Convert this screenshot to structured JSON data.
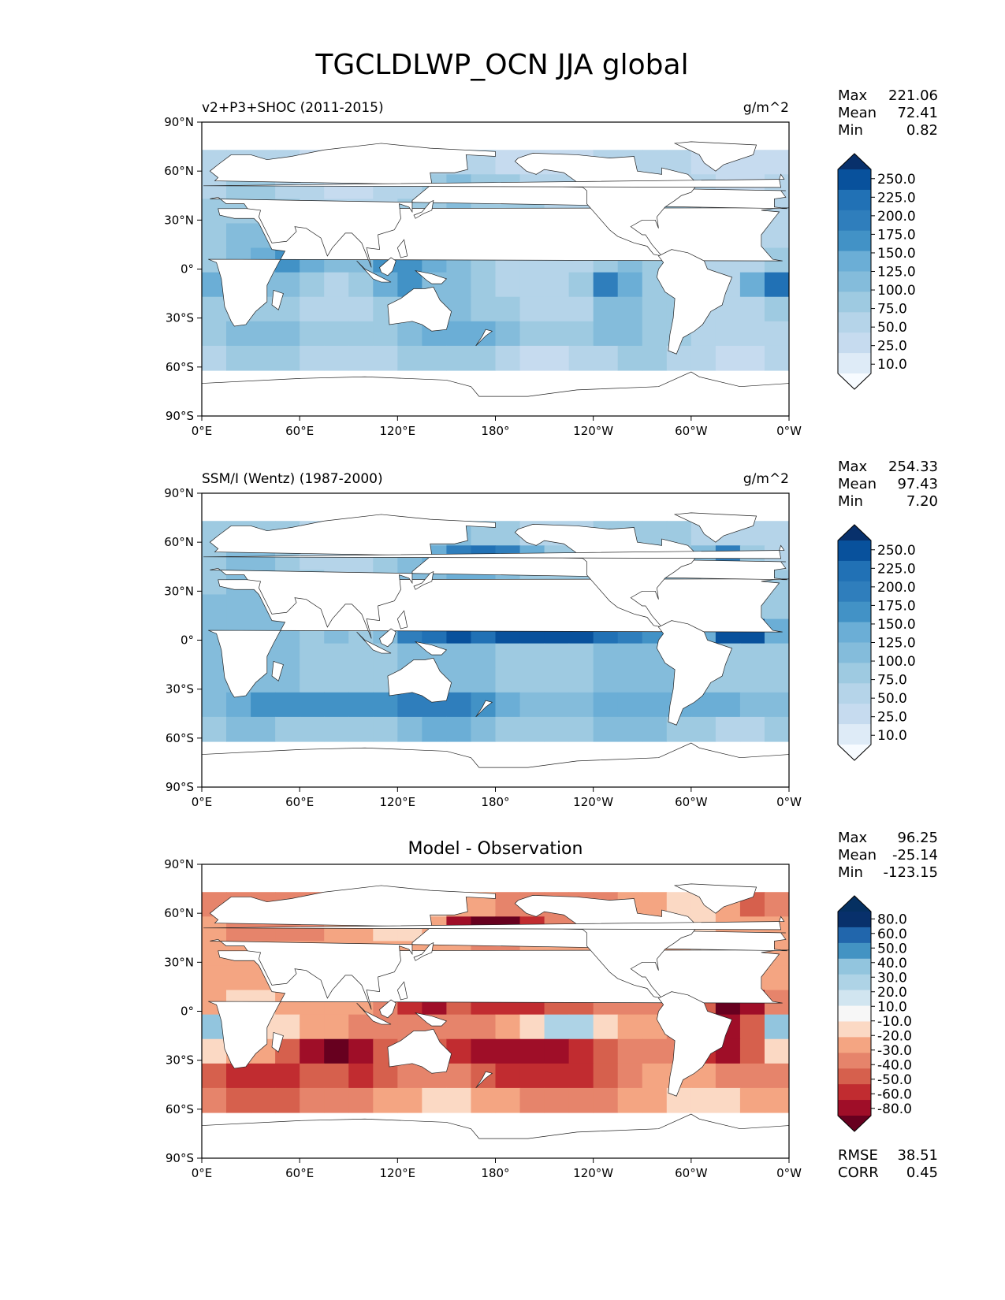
{
  "figure_title": "TGCLDLWP_OCN JJA global",
  "chart_data": [
    {
      "type": "heatmap",
      "title_left": "v2+P3+SHOC (2011-2015)",
      "units": "g/m^2",
      "stats": [
        {
          "label": "Max",
          "value": "221.06"
        },
        {
          "label": "Mean",
          "value": "72.41"
        },
        {
          "label": "Min",
          "value": "0.82"
        }
      ],
      "colorbar": {
        "palette": "blues",
        "levels": [
          "250.0",
          "225.0",
          "200.0",
          "175.0",
          "150.0",
          "125.0",
          "100.0",
          "75.0",
          "50.0",
          "25.0",
          "10.0"
        ]
      },
      "x_ticks": [
        "0°E",
        "60°E",
        "120°E",
        "180°",
        "120°W",
        "60°W",
        "0°W"
      ],
      "y_ticks": [
        "90°N",
        "60°N",
        "30°N",
        "0°",
        "30°S",
        "60°S",
        "90°S"
      ],
      "xlim": [
        0,
        360
      ],
      "ylim": [
        -90,
        90
      ]
    },
    {
      "type": "heatmap",
      "title_left": "SSM/I (Wentz) (1987-2000)",
      "units": "g/m^2",
      "stats": [
        {
          "label": "Max",
          "value": "254.33"
        },
        {
          "label": "Mean",
          "value": "97.43"
        },
        {
          "label": "Min",
          "value": "7.20"
        }
      ],
      "colorbar": {
        "palette": "blues",
        "levels": [
          "250.0",
          "225.0",
          "200.0",
          "175.0",
          "150.0",
          "125.0",
          "100.0",
          "75.0",
          "50.0",
          "25.0",
          "10.0"
        ]
      },
      "x_ticks": [
        "0°E",
        "60°E",
        "120°E",
        "180°",
        "120°W",
        "60°W",
        "0°W"
      ],
      "y_ticks": [
        "90°N",
        "60°N",
        "30°N",
        "0°",
        "30°S",
        "60°S",
        "90°S"
      ],
      "xlim": [
        0,
        360
      ],
      "ylim": [
        -90,
        90
      ]
    },
    {
      "type": "heatmap",
      "title_center": "Model - Observation",
      "stats": [
        {
          "label": "Max",
          "value": "96.25"
        },
        {
          "label": "Mean",
          "value": "-25.14"
        },
        {
          "label": "Min",
          "value": "-123.15"
        }
      ],
      "colorbar": {
        "palette": "rdbu",
        "levels": [
          "80.0",
          "60.0",
          "50.0",
          "40.0",
          "30.0",
          "20.0",
          "10.0",
          "-10.0",
          "-20.0",
          "-30.0",
          "-40.0",
          "-50.0",
          "-60.0",
          "-80.0"
        ]
      },
      "metrics": [
        {
          "label": "RMSE",
          "value": "38.51"
        },
        {
          "label": "CORR",
          "value": "0.45"
        }
      ],
      "x_ticks": [
        "0°E",
        "60°E",
        "120°E",
        "180°",
        "120°W",
        "60°W",
        "0°W"
      ],
      "y_ticks": [
        "90°N",
        "60°N",
        "30°N",
        "0°",
        "30°S",
        "60°S",
        "90°S"
      ],
      "xlim": [
        0,
        360
      ],
      "ylim": [
        -90,
        90
      ]
    }
  ],
  "colors": {
    "blues": [
      "#f7fbff",
      "#deebf7",
      "#c6dbef",
      "#b5d4e9",
      "#9ecae1",
      "#84bcdb",
      "#6baed6",
      "#4292c6",
      "#2f7ebc",
      "#2171b5",
      "#08519c",
      "#08306b"
    ],
    "rdbu": [
      "#67001f",
      "#9f0e28",
      "#c12c30",
      "#d6604d",
      "#e6846b",
      "#f4a582",
      "#fbd9c4",
      "#f7f7f7",
      "#d1e5f0",
      "#aed3e6",
      "#92c5de",
      "#4393c3",
      "#2166ac",
      "#08306b",
      "#053061"
    ]
  }
}
